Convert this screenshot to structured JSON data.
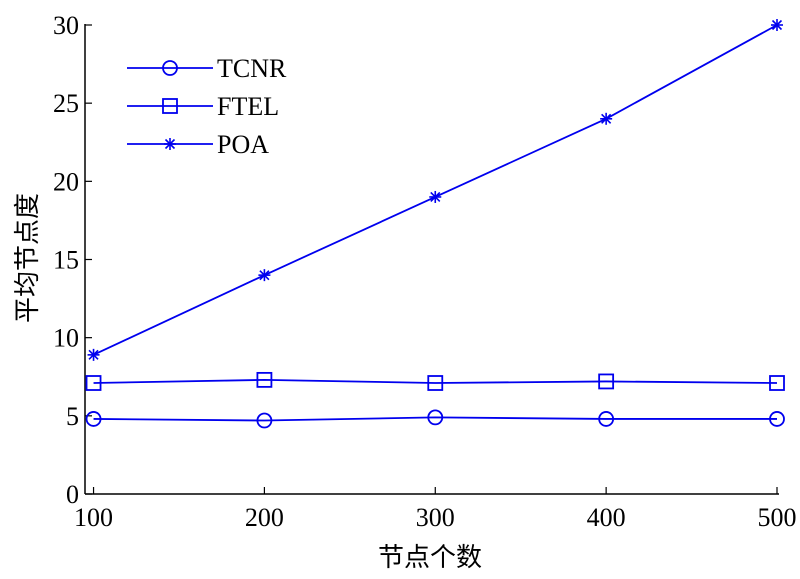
{
  "chart_data": {
    "type": "line",
    "x": [
      100,
      200,
      300,
      400,
      500
    ],
    "xlabel": "节点个数",
    "ylabel": "平均节点度",
    "xlim": [
      95,
      500
    ],
    "ylim": [
      0,
      30
    ],
    "xticks": [
      100,
      200,
      300,
      400,
      500
    ],
    "yticks": [
      0,
      5,
      10,
      15,
      20,
      25,
      30
    ],
    "grid": false,
    "legend_position": "top-left",
    "line_color": "#0000ee",
    "series": [
      {
        "name": "TCNR",
        "marker": "circle",
        "values": [
          4.8,
          4.7,
          4.9,
          4.8,
          4.8
        ]
      },
      {
        "name": "FTEL",
        "marker": "square",
        "values": [
          7.1,
          7.3,
          7.1,
          7.2,
          7.1
        ]
      },
      {
        "name": "POA",
        "marker": "star",
        "values": [
          8.9,
          14.0,
          19.0,
          24.0,
          30.0
        ]
      }
    ]
  }
}
